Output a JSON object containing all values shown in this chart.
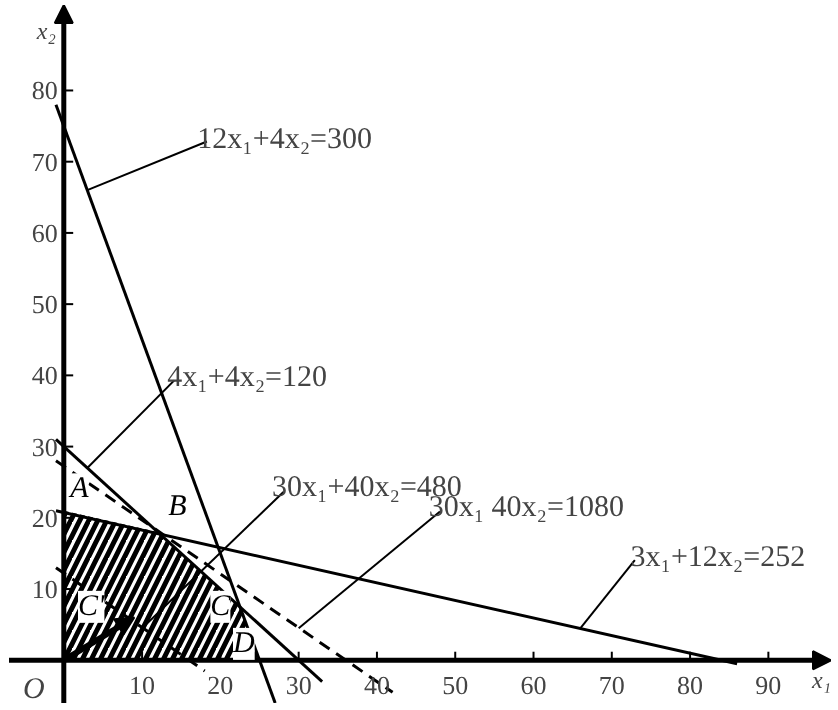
{
  "chart_data": {
    "type": "line",
    "xlabel": "x₁",
    "ylabel": "x₂",
    "xlim": [
      -7,
      98
    ],
    "ylim": [
      -6,
      92
    ],
    "xticks": [
      10,
      20,
      30,
      40,
      50,
      60,
      70,
      80,
      90
    ],
    "yticks": [
      10,
      20,
      30,
      40,
      50,
      60,
      70,
      80
    ],
    "series": [
      {
        "type": "area",
        "color": "#000000",
        "x": [
          0,
          12,
          22.5,
          25
        ],
        "values": [
          21,
          18,
          7.5,
          0
        ]
      },
      {
        "color": "#000000",
        "x": [
          -1,
          27
        ],
        "values": [
          78,
          -6
        ],
        "line_style": "solid"
      },
      {
        "color": "#000000",
        "x": [
          -1,
          33
        ],
        "values": [
          31,
          -3
        ],
        "line_style": "solid"
      },
      {
        "color": "#000000",
        "x": [
          -1,
          18
        ],
        "values": [
          13,
          -1.5
        ],
        "line_style": "dashed"
      },
      {
        "color": "#000000",
        "x": [
          -1,
          42
        ],
        "values": [
          28,
          -4.5
        ],
        "line_style": "dashed"
      },
      {
        "color": "#000000",
        "x": [
          -1,
          86
        ],
        "values": [
          21,
          -0.5
        ],
        "line_style": "solid"
      }
    ],
    "annotations": [
      {
        "text": "12x₁+4x₂=300",
        "x": 3,
        "y": 66
      },
      {
        "text": "4x₁+4x₂=120",
        "x": 3,
        "y": 27
      },
      {
        "text": "30x₁+40x₂=480",
        "x": 10,
        "y": 4.5
      },
      {
        "text": "30x₁ 40x₂=1080",
        "x": 30,
        "y": 4.5
      },
      {
        "text": "3x₁+12x₂=252",
        "x": 66,
        "y": 4.5
      },
      "A",
      "B",
      "C",
      "D",
      "C'",
      {
        "text": "O",
        "x": 0,
        "y": 0
      }
    ]
  }
}
